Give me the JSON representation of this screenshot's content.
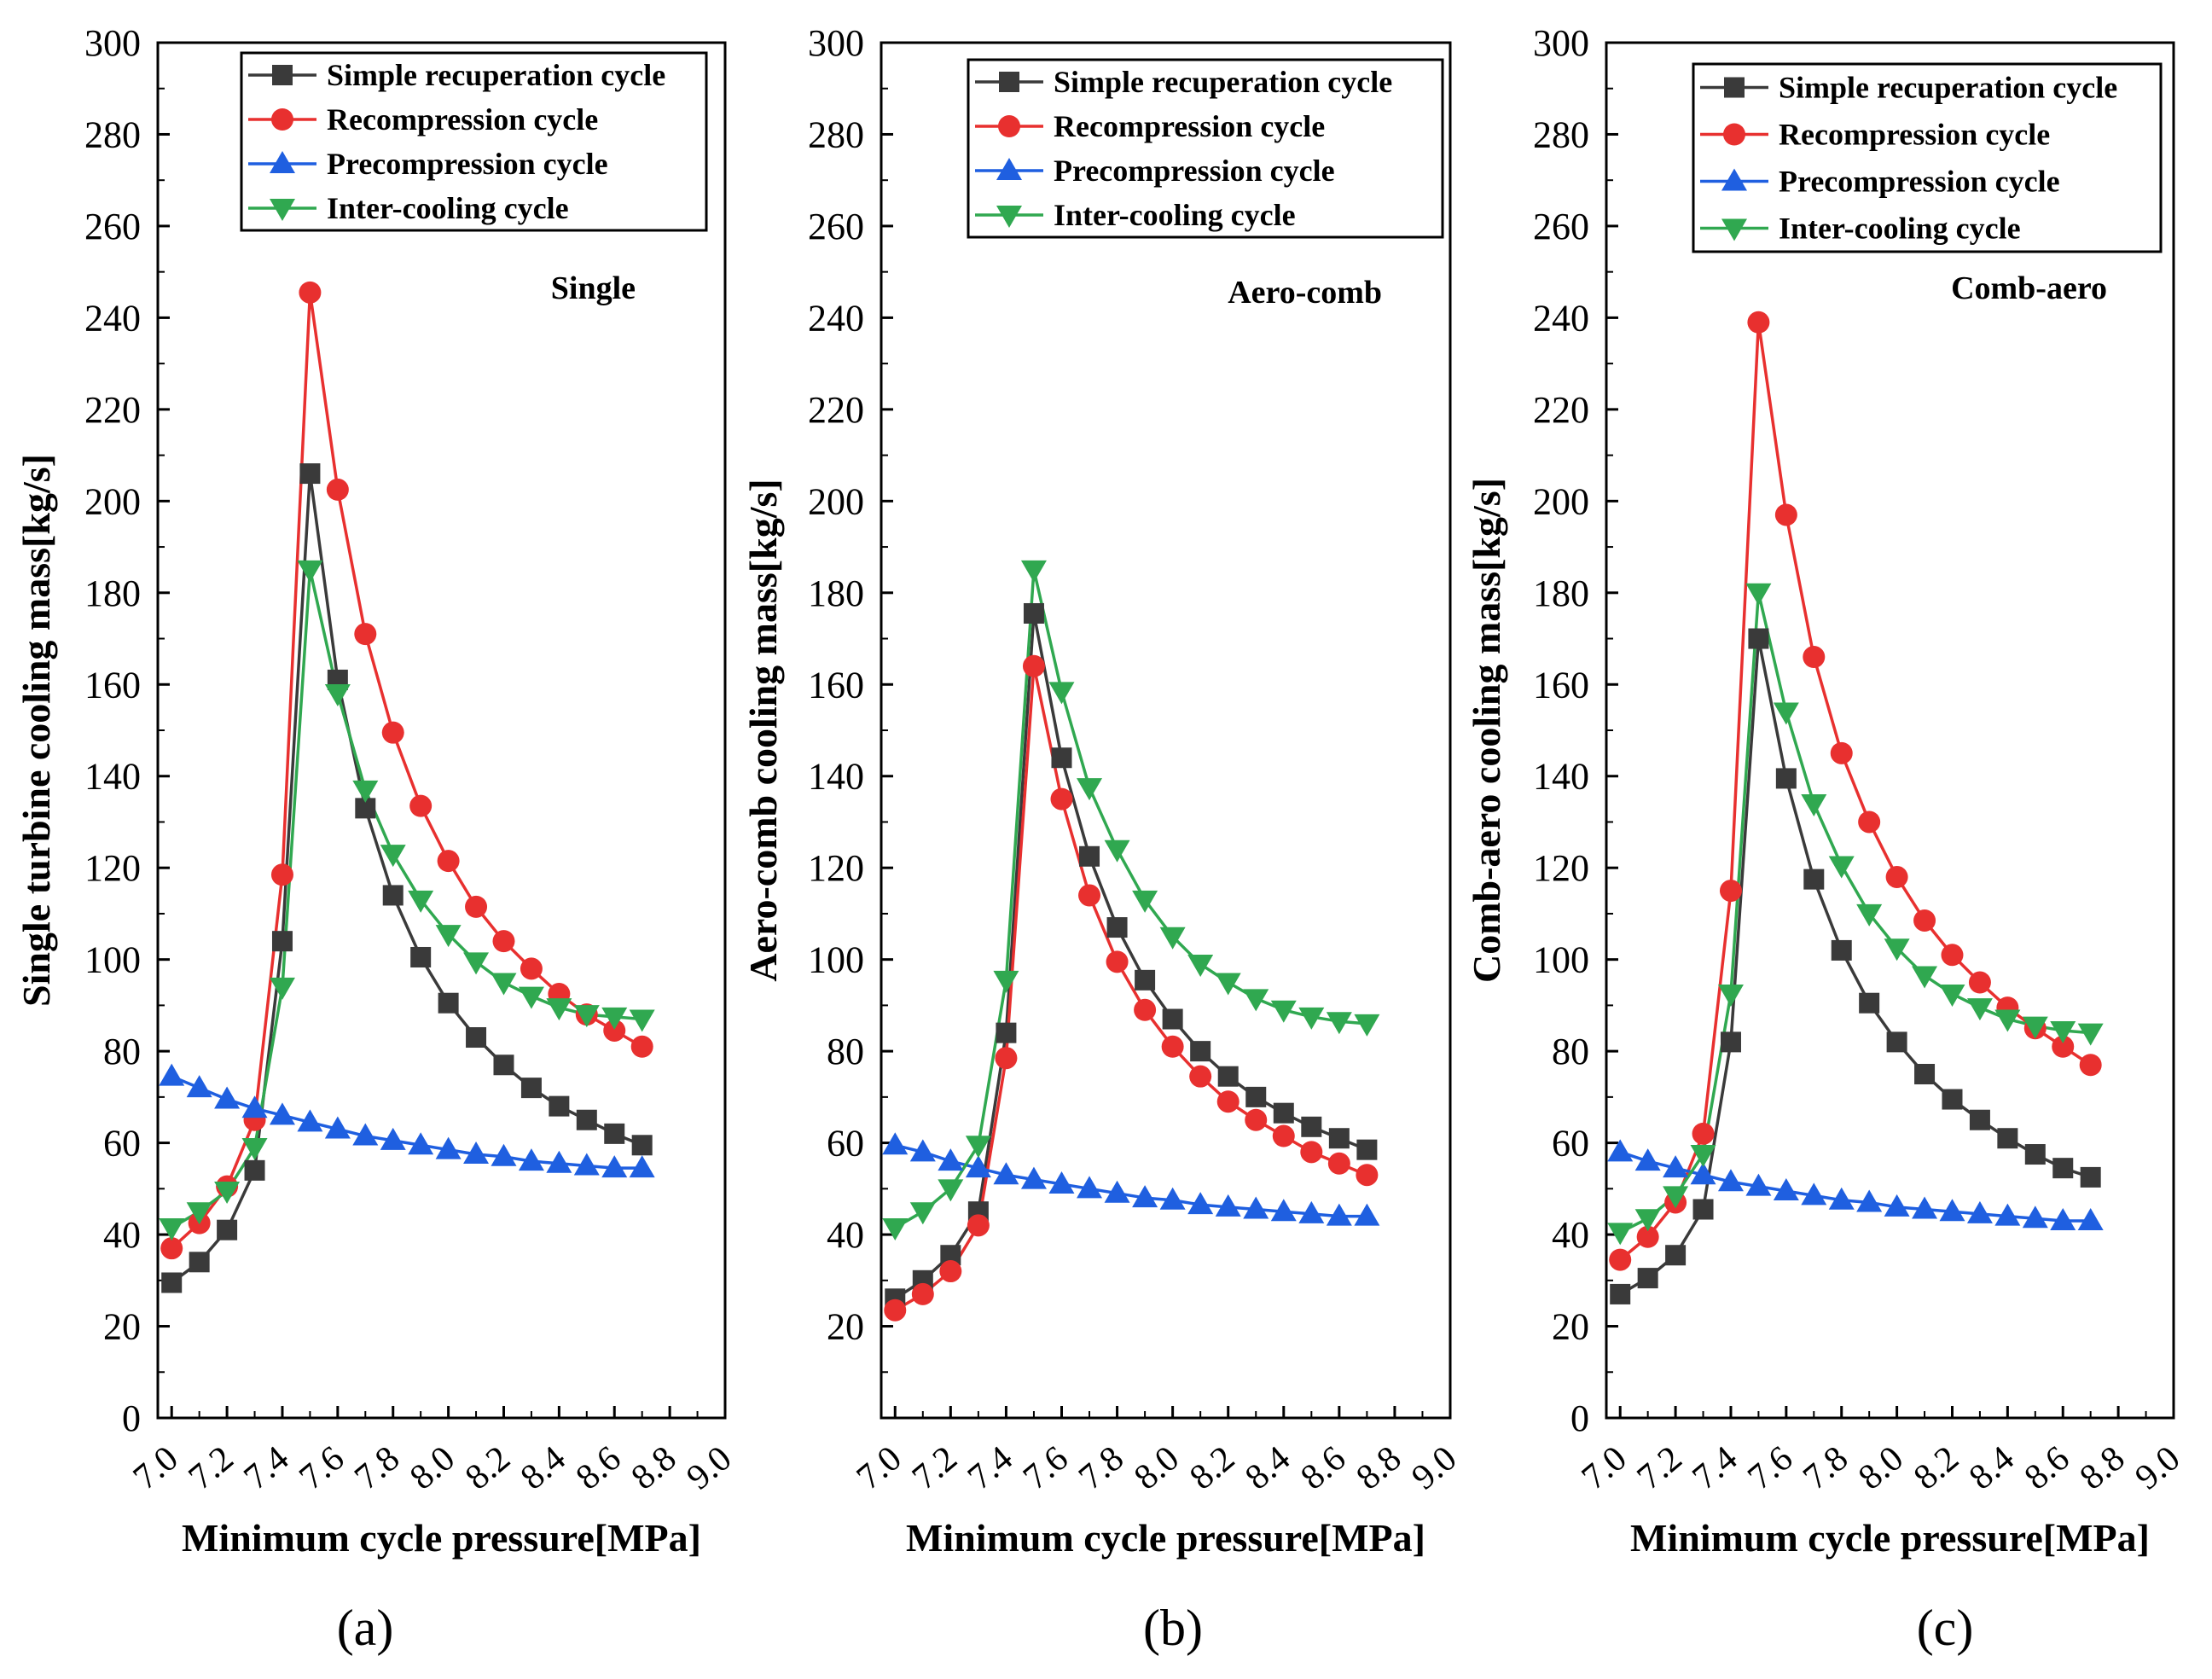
{
  "figure": {
    "panel_labels": [
      "(a)",
      "(b)",
      "(c)"
    ]
  },
  "colors": {
    "simple": "#3a3a3a",
    "recompression": "#e8302f",
    "precompression": "#1f5fe0",
    "intercooling": "#30a850"
  },
  "chart_data": [
    {
      "type": "line",
      "title": "",
      "annotation": "Single",
      "panel_label": "(a)",
      "xlabel": "Minimum cycle pressure[MPa]",
      "ylabel": "Single turbine cooling mass[kg/s]",
      "xlim": [
        6.95,
        9.0
      ],
      "ylim": [
        0,
        300
      ],
      "xticks": [
        "7.0",
        "7.2",
        "7.4",
        "7.6",
        "7.8",
        "8.0",
        "8.2",
        "8.4",
        "8.6",
        "8.8",
        "9.0"
      ],
      "yticks": [
        "0",
        "20",
        "40",
        "60",
        "80",
        "100",
        "120",
        "140",
        "160",
        "180",
        "200",
        "220",
        "240",
        "260",
        "280",
        "300"
      ],
      "x": [
        7.0,
        7.1,
        7.2,
        7.3,
        7.4,
        7.5,
        7.6,
        7.7,
        7.8,
        7.9,
        8.0,
        8.1,
        8.2,
        8.3,
        8.4,
        8.5,
        8.6,
        8.7
      ],
      "series": [
        {
          "name": "Simple recuperation cycle",
          "marker": "square",
          "color_key": "simple",
          "values": [
            29.5,
            34,
            41,
            54,
            104,
            206,
            161,
            133,
            114,
            100.5,
            90.5,
            83,
            77,
            72,
            68,
            65,
            62,
            59.5
          ]
        },
        {
          "name": "Recompression cycle",
          "marker": "circle",
          "color_key": "recompression",
          "values": [
            37,
            42.5,
            50.5,
            65,
            118.5,
            245.5,
            202.5,
            171,
            149.5,
            133.5,
            121.5,
            111.5,
            104,
            98,
            92.5,
            88,
            84.5,
            81
          ]
        },
        {
          "name": "Precompression cycle",
          "marker": "triangle-up",
          "color_key": "precompression",
          "values": [
            74.5,
            72,
            69.5,
            67.5,
            66,
            64.5,
            63,
            61.5,
            60.5,
            59.5,
            58.5,
            57.5,
            57,
            56,
            55.5,
            55,
            54.5,
            54.5
          ]
        },
        {
          "name": "Inter-cooling cycle",
          "marker": "triangle-down",
          "color_key": "intercooling",
          "values": [
            41.5,
            45,
            49.5,
            59,
            94,
            185,
            158,
            137,
            123,
            113,
            105.5,
            99.5,
            95,
            92,
            89.5,
            88,
            87.5,
            87
          ]
        }
      ]
    },
    {
      "type": "line",
      "title": "",
      "annotation": "Aero-comb",
      "panel_label": "(b)",
      "xlabel": "Minimum cycle pressure[MPa]",
      "ylabel": "Aero-comb cooling mass[kg/s]",
      "xlim": [
        6.95,
        9.0
      ],
      "ylim": [
        0,
        300
      ],
      "xticks": [
        "7.0",
        "7.2",
        "7.4",
        "7.6",
        "7.8",
        "8.0",
        "8.2",
        "8.4",
        "8.6",
        "8.8",
        "9.0"
      ],
      "yticks": [
        "20",
        "40",
        "60",
        "80",
        "100",
        "120",
        "140",
        "160",
        "180",
        "200",
        "220",
        "240",
        "260",
        "280",
        "300"
      ],
      "x": [
        7.0,
        7.1,
        7.2,
        7.3,
        7.4,
        7.5,
        7.6,
        7.7,
        7.8,
        7.9,
        8.0,
        8.1,
        8.2,
        8.3,
        8.4,
        8.5,
        8.6,
        8.7
      ],
      "series": [
        {
          "name": "Simple recuperation cycle",
          "marker": "square",
          "color_key": "simple",
          "values": [
            26,
            30,
            35.5,
            45,
            84,
            175.5,
            144,
            122.5,
            107,
            95.5,
            87,
            80,
            74.5,
            70,
            66.5,
            63.5,
            61,
            58.5
          ]
        },
        {
          "name": "Recompression cycle",
          "marker": "circle",
          "color_key": "recompression",
          "values": [
            23.5,
            27,
            32,
            42,
            78.5,
            164,
            135,
            114,
            99.5,
            89,
            81,
            74.5,
            69,
            65,
            61.5,
            58,
            55.5,
            53
          ]
        },
        {
          "name": "Precompression cycle",
          "marker": "triangle-up",
          "color_key": "precompression",
          "values": [
            59.5,
            58,
            56,
            54.5,
            53,
            52,
            51,
            50,
            49,
            48,
            47.5,
            46.5,
            46,
            45.5,
            45,
            44.5,
            44,
            44
          ]
        },
        {
          "name": "Inter-cooling cycle",
          "marker": "triangle-down",
          "color_key": "intercooling",
          "values": [
            41.5,
            45,
            50,
            59.5,
            95.5,
            185,
            158.5,
            137.5,
            124,
            113,
            105,
            99,
            95,
            91.5,
            89,
            87.5,
            86.5,
            86
          ]
        }
      ]
    },
    {
      "type": "line",
      "title": "",
      "annotation": "Comb-aero",
      "panel_label": "(c)",
      "xlabel": "Minimum cycle pressure[MPa]",
      "ylabel": "Comb-aero cooling mass[kg/s]",
      "xlim": [
        6.95,
        9.0
      ],
      "ylim": [
        0,
        300
      ],
      "xticks": [
        "7.0",
        "7.2",
        "7.4",
        "7.6",
        "7.8",
        "8.0",
        "8.2",
        "8.4",
        "8.6",
        "8.8",
        "9.0"
      ],
      "yticks": [
        "0",
        "20",
        "40",
        "60",
        "80",
        "100",
        "120",
        "140",
        "160",
        "180",
        "200",
        "220",
        "240",
        "260",
        "280",
        "300"
      ],
      "x": [
        7.0,
        7.1,
        7.2,
        7.3,
        7.4,
        7.5,
        7.6,
        7.7,
        7.8,
        7.9,
        8.0,
        8.1,
        8.2,
        8.3,
        8.4,
        8.5,
        8.6,
        8.7
      ],
      "series": [
        {
          "name": "Simple recuperation cycle",
          "marker": "square",
          "color_key": "simple",
          "values": [
            27,
            30.5,
            35.5,
            45.5,
            82,
            170,
            139.5,
            117.5,
            102,
            90.5,
            82,
            75,
            69.5,
            65,
            61,
            57.5,
            54.5,
            52.5
          ]
        },
        {
          "name": "Recompression cycle",
          "marker": "circle",
          "color_key": "recompression",
          "values": [
            34.5,
            39.5,
            47,
            62,
            115,
            239,
            197,
            166,
            145,
            130,
            118,
            108.5,
            101,
            95,
            89.5,
            85,
            81,
            77
          ]
        },
        {
          "name": "Precompression cycle",
          "marker": "triangle-up",
          "color_key": "precompression",
          "values": [
            58,
            56,
            54.5,
            53,
            51.5,
            50.5,
            49.5,
            48.5,
            47.5,
            47,
            46,
            45.5,
            45,
            44.5,
            44,
            43.5,
            43,
            43
          ]
        },
        {
          "name": "Inter-cooling cycle",
          "marker": "triangle-down",
          "color_key": "intercooling",
          "values": [
            40.5,
            43.5,
            48.5,
            57.5,
            92.5,
            180,
            154,
            134,
            120.5,
            110,
            102.5,
            96.5,
            92.5,
            89.5,
            87,
            85.5,
            84.5,
            84
          ]
        }
      ]
    }
  ]
}
